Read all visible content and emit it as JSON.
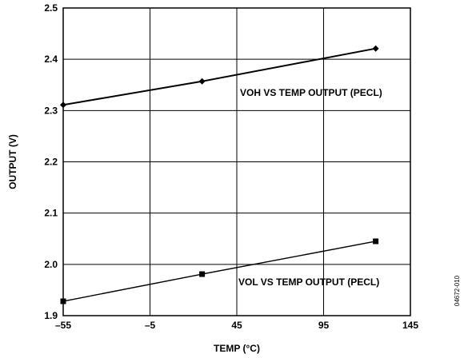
{
  "chart_data": {
    "type": "line",
    "xlabel": "TEMP (°C)",
    "ylabel": "OUTPUT (V)",
    "xlim": [
      -55,
      145
    ],
    "ylim": [
      1.9,
      2.5
    ],
    "xticks": [
      -55,
      -5,
      45,
      95,
      145
    ],
    "xtick_labels": [
      "–55",
      "–5",
      "45",
      "95",
      "145"
    ],
    "yticks": [
      1.9,
      2.0,
      2.1,
      2.2,
      2.3,
      2.4,
      2.5
    ],
    "ytick_labels": [
      "1.9",
      "2.0",
      "2.1",
      "2.2",
      "2.3",
      "2.4",
      "2.5"
    ],
    "grid": true,
    "series": [
      {
        "name": "VOH VS TEMP OUTPUT (PECL)",
        "marker": "diamond",
        "x": [
          -55,
          25,
          125
        ],
        "y": [
          2.311,
          2.357,
          2.421
        ]
      },
      {
        "name": "VOL VS TEMP OUTPUT (PECL)",
        "marker": "square",
        "x": [
          -55,
          25,
          125
        ],
        "y": [
          1.928,
          1.981,
          2.045
        ]
      }
    ],
    "figure_id": "04672-010"
  }
}
